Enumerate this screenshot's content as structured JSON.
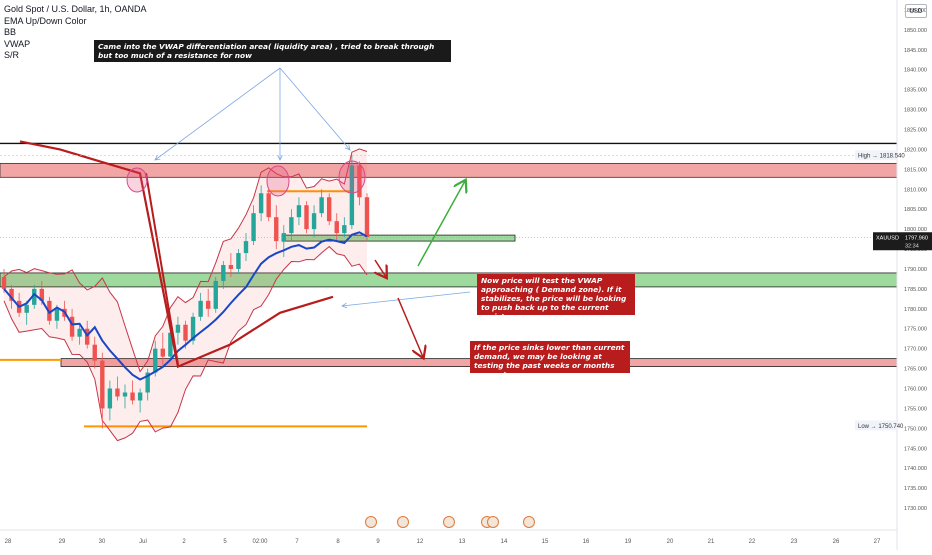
{
  "legend": {
    "title": "Gold Spot / U.S. Dollar, 1h, OANDA",
    "indicators": [
      "EMA Up/Down Color",
      "BB",
      "VWAP",
      "S/R"
    ]
  },
  "currency": "USD",
  "annotations": {
    "top": "Came into the VWAP differentiation area( liquidity area) , tried to break through but too much of a resistance for now",
    "middle": "Now price will test the VWAP approaching ( Demand zone). If it stabilizes, the price will be looking to push back up to the current resistance.",
    "bottom": "If the price sinks lower than current demand, we may be looking at testing the past weeks or months supports."
  },
  "price_tag": {
    "symbol": "XAUUSD",
    "price": "1797.960",
    "countdown": "32:34"
  },
  "high_label": {
    "label": "High",
    "value": "1818.540"
  },
  "low_label": {
    "label": "Low",
    "value": "1750.740"
  },
  "colors": {
    "bull": "#26a69a",
    "bear": "#ef5350",
    "vwap": "#1a47c6",
    "ema": "#b81c1c",
    "resistance_zone": "#f2a5a5",
    "demand_zone": "#9ed99e",
    "support_line": "#ff9800",
    "arrow_blue": "#7ea6e0",
    "arrow_green": "#3cae3c",
    "arrow_red": "#b81c1c"
  },
  "chart_data": {
    "type": "candlestick",
    "symbol": "XAUUSD",
    "timeframe": "1h",
    "ylim": [
      1727,
      1857
    ],
    "y_ticks": [
      1730,
      1735,
      1740,
      1745,
      1750,
      1755,
      1760,
      1765,
      1770,
      1775,
      1780,
      1785,
      1790,
      1795,
      1800,
      1805,
      1810,
      1815,
      1820,
      1825,
      1830,
      1835,
      1840,
      1845,
      1850,
      1855
    ],
    "x_ticks": [
      "28",
      "29",
      "30",
      "Jul",
      "2",
      "5",
      "02:00",
      "7",
      "8",
      "9",
      "12",
      "13",
      "14",
      "15",
      "16",
      "19",
      "20",
      "21",
      "22",
      "23",
      "26",
      "27"
    ],
    "key_levels": {
      "high": 1818.54,
      "low": 1750.74,
      "last": 1797.96,
      "resistance_line": 1821.5,
      "resistance_zone": [
        1813,
        1816.5
      ],
      "orange_resistance": 1809.5,
      "current_demand_zone": [
        1797,
        1798.5
      ],
      "demand_zone": [
        1785.5,
        1789
      ],
      "lower_zone": [
        1765.5,
        1767.5
      ],
      "orange_support_low": 1750.5
    },
    "candles": [
      [
        1788,
        1790,
        1784,
        1785
      ],
      [
        1785,
        1786,
        1780,
        1782
      ],
      [
        1782,
        1784,
        1778,
        1779
      ],
      [
        1779,
        1782,
        1776,
        1781
      ],
      [
        1781,
        1786,
        1780,
        1785
      ],
      [
        1785,
        1787,
        1781,
        1782
      ],
      [
        1782,
        1783,
        1776,
        1777
      ],
      [
        1777,
        1781,
        1775,
        1780
      ],
      [
        1780,
        1782,
        1777,
        1778
      ],
      [
        1778,
        1780,
        1772,
        1773
      ],
      [
        1773,
        1776,
        1771,
        1775
      ],
      [
        1775,
        1777,
        1770,
        1771
      ],
      [
        1771,
        1773,
        1765,
        1767
      ],
      [
        1767,
        1769,
        1750,
        1755
      ],
      [
        1755,
        1762,
        1752,
        1760
      ],
      [
        1760,
        1763,
        1757,
        1758
      ],
      [
        1758,
        1761,
        1755,
        1759
      ],
      [
        1759,
        1762,
        1756,
        1757
      ],
      [
        1757,
        1760,
        1754,
        1759
      ],
      [
        1759,
        1765,
        1757,
        1764
      ],
      [
        1764,
        1772,
        1763,
        1770
      ],
      [
        1770,
        1774,
        1766,
        1768
      ],
      [
        1768,
        1775,
        1767,
        1774
      ],
      [
        1774,
        1778,
        1771,
        1776
      ],
      [
        1776,
        1777,
        1770,
        1772
      ],
      [
        1772,
        1779,
        1771,
        1778
      ],
      [
        1778,
        1784,
        1777,
        1782
      ],
      [
        1782,
        1785,
        1778,
        1780
      ],
      [
        1780,
        1788,
        1779,
        1787
      ],
      [
        1787,
        1792,
        1785,
        1791
      ],
      [
        1791,
        1794,
        1788,
        1790
      ],
      [
        1790,
        1795,
        1789,
        1794
      ],
      [
        1794,
        1799,
        1792,
        1797
      ],
      [
        1797,
        1806,
        1796,
        1804
      ],
      [
        1804,
        1811,
        1802,
        1809
      ],
      [
        1809,
        1810,
        1802,
        1803
      ],
      [
        1803,
        1806,
        1795,
        1797
      ],
      [
        1797,
        1801,
        1793,
        1799
      ],
      [
        1799,
        1805,
        1797,
        1803
      ],
      [
        1803,
        1808,
        1801,
        1806
      ],
      [
        1806,
        1807,
        1799,
        1800
      ],
      [
        1800,
        1806,
        1798,
        1804
      ],
      [
        1804,
        1810,
        1803,
        1808
      ],
      [
        1808,
        1809,
        1801,
        1802
      ],
      [
        1802,
        1804,
        1797,
        1799
      ],
      [
        1799,
        1803,
        1798,
        1801
      ],
      [
        1801,
        1818.5,
        1800,
        1816
      ],
      [
        1816,
        1817,
        1806,
        1808
      ],
      [
        1808,
        1809,
        1797,
        1798
      ]
    ]
  }
}
